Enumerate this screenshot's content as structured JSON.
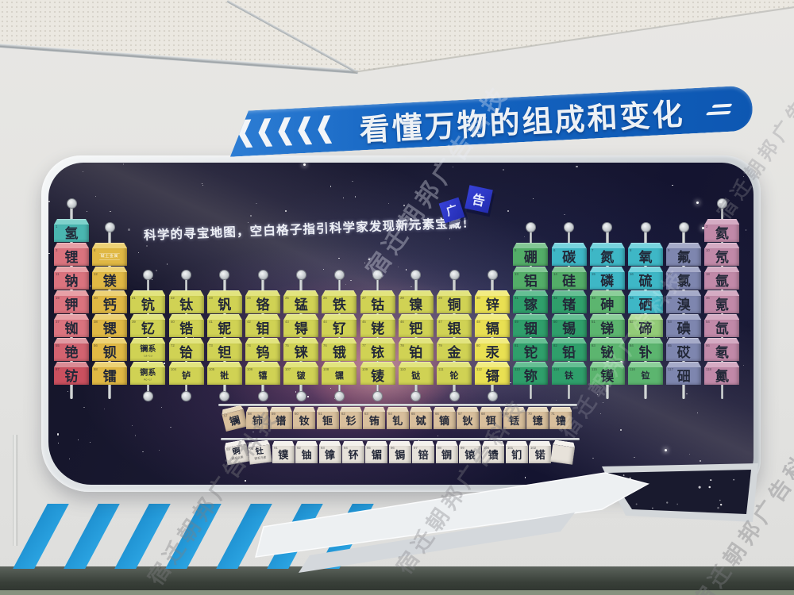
{
  "watermark": {
    "text": "宿迁朝邦广告科技"
  },
  "banner": {
    "title": "看懂万物的组成和变化",
    "chevron_count": 5,
    "color": "#1565c2"
  },
  "board": {
    "subtitle": "科学的寻宝地图，空白格子指引科学家发现新元素宝藏！"
  },
  "decor_cubes": [
    {
      "char": "广"
    },
    {
      "char": "告"
    }
  ],
  "palette": {
    "teal": {
      "f": "#4ab6b0",
      "t": "#7fd2cb"
    },
    "cyan": {
      "f": "#3eb7c6",
      "t": "#78d4de"
    },
    "rose": {
      "f": "#da737e",
      "t": "#e7a0a6"
    },
    "rose2": {
      "f": "#d26370",
      "t": "#e09aa2"
    },
    "rose3": {
      "f": "#ca505f",
      "t": "#d98b95"
    },
    "gold": {
      "f": "#e0b844",
      "t": "#edd276"
    },
    "olive": {
      "f": "#d0d254",
      "t": "#e2e47f"
    },
    "yellow": {
      "f": "#e9e052",
      "t": "#f2ec82"
    },
    "green": {
      "f": "#53ad68",
      "t": "#83c795"
    },
    "emerald": {
      "f": "#2f9f6b",
      "t": "#66bf94"
    },
    "mgreen": {
      "f": "#5cb56f",
      "t": "#8ccf9a"
    },
    "ltgreen": {
      "f": "#93cb78",
      "t": "#b8dfa0"
    },
    "slate": {
      "f": "#7e86af",
      "t": "#a6abc9"
    },
    "mauve": {
      "f": "#c189a8",
      "t": "#d5abc3"
    },
    "tan": {
      "f": "#d8bf9c",
      "t": "#e8d9bd"
    },
    "whitec": {
      "f": "#e7e2da",
      "t": "#f4f1ec"
    }
  },
  "periodic_table": {
    "columns": [
      {
        "group": 1,
        "start": 1,
        "cells": [
          {
            "t": "氢",
            "n": "1",
            "c": "teal"
          },
          {
            "t": "锂",
            "n": "3",
            "c": "rose"
          },
          {
            "t": "钠",
            "n": "11",
            "c": "rose"
          },
          {
            "t": "钾",
            "n": "19",
            "c": "rose"
          },
          {
            "t": "铷",
            "n": "37",
            "c": "rose"
          },
          {
            "t": "铯",
            "n": "55",
            "c": "rose2"
          },
          {
            "t": "钫",
            "n": "87",
            "c": "rose3"
          }
        ]
      },
      {
        "group": 2,
        "start": 2,
        "cells": [
          {
            "t": "碱土金属",
            "n": "4",
            "c": "gold",
            "info": true
          },
          {
            "t": "镁",
            "n": "12",
            "c": "gold"
          },
          {
            "t": "钙",
            "n": "20",
            "c": "gold"
          },
          {
            "t": "锶",
            "n": "38",
            "c": "gold"
          },
          {
            "t": "钡",
            "n": "56",
            "c": "gold"
          },
          {
            "t": "镭",
            "n": "88",
            "c": "gold"
          }
        ]
      },
      {
        "group": 3,
        "start": 4,
        "cells": [
          {
            "t": "钪",
            "n": "21",
            "c": "olive"
          },
          {
            "t": "钇",
            "n": "39",
            "c": "olive"
          },
          {
            "t": "镧系",
            "n": "",
            "c": "olive",
            "sub": "La~Lu"
          },
          {
            "t": "锕系",
            "n": "",
            "c": "olive",
            "sub": "Ac~Lr"
          }
        ]
      },
      {
        "group": 4,
        "start": 4,
        "cells": [
          {
            "t": "钛",
            "n": "22",
            "c": "olive"
          },
          {
            "t": "锆",
            "n": "40",
            "c": "olive"
          },
          {
            "t": "铪",
            "n": "72",
            "c": "olive"
          },
          {
            "t": "𬬻",
            "n": "104",
            "c": "olive"
          }
        ]
      },
      {
        "group": 5,
        "start": 4,
        "cells": [
          {
            "t": "钒",
            "n": "23",
            "c": "olive"
          },
          {
            "t": "铌",
            "n": "41",
            "c": "olive"
          },
          {
            "t": "钽",
            "n": "73",
            "c": "olive"
          },
          {
            "t": "𬭊",
            "n": "105",
            "c": "olive"
          }
        ]
      },
      {
        "group": 6,
        "start": 4,
        "cells": [
          {
            "t": "铬",
            "n": "24",
            "c": "olive"
          },
          {
            "t": "钼",
            "n": "42",
            "c": "olive"
          },
          {
            "t": "钨",
            "n": "74",
            "c": "olive"
          },
          {
            "t": "𬭳",
            "n": "106",
            "c": "olive"
          }
        ]
      },
      {
        "group": 7,
        "start": 4,
        "cells": [
          {
            "t": "锰",
            "n": "25",
            "c": "olive"
          },
          {
            "t": "锝",
            "n": "43",
            "c": "olive"
          },
          {
            "t": "铼",
            "n": "75",
            "c": "olive"
          },
          {
            "t": "𬭛",
            "n": "107",
            "c": "olive"
          }
        ]
      },
      {
        "group": 8,
        "start": 4,
        "cells": [
          {
            "t": "铁",
            "n": "26",
            "c": "olive"
          },
          {
            "t": "钌",
            "n": "44",
            "c": "olive"
          },
          {
            "t": "锇",
            "n": "76",
            "c": "olive"
          },
          {
            "t": "𬭶",
            "n": "108",
            "c": "olive"
          }
        ]
      },
      {
        "group": 9,
        "start": 4,
        "cells": [
          {
            "t": "钴",
            "n": "27",
            "c": "olive"
          },
          {
            "t": "铑",
            "n": "45",
            "c": "olive"
          },
          {
            "t": "铱",
            "n": "77",
            "c": "olive"
          },
          {
            "t": "鿏",
            "n": "109",
            "c": "olive"
          }
        ]
      },
      {
        "group": 10,
        "start": 4,
        "cells": [
          {
            "t": "镍",
            "n": "28",
            "c": "olive"
          },
          {
            "t": "钯",
            "n": "46",
            "c": "olive"
          },
          {
            "t": "铂",
            "n": "78",
            "c": "olive"
          },
          {
            "t": "𫟼",
            "n": "110",
            "c": "olive"
          }
        ]
      },
      {
        "group": 11,
        "start": 4,
        "cells": [
          {
            "t": "铜",
            "n": "29",
            "c": "olive"
          },
          {
            "t": "银",
            "n": "47",
            "c": "olive"
          },
          {
            "t": "金",
            "n": "79",
            "c": "olive"
          },
          {
            "t": "𬬭",
            "n": "111",
            "c": "olive"
          }
        ]
      },
      {
        "group": 12,
        "start": 4,
        "cells": [
          {
            "t": "锌",
            "n": "30",
            "c": "yellow"
          },
          {
            "t": "镉",
            "n": "48",
            "c": "yellow"
          },
          {
            "t": "汞",
            "n": "80",
            "c": "yellow"
          },
          {
            "t": "鿔",
            "n": "112",
            "c": "yellow"
          }
        ]
      },
      {
        "group": 13,
        "start": 2,
        "cells": [
          {
            "t": "硼",
            "n": "5",
            "c": "green"
          },
          {
            "t": "铝",
            "n": "13",
            "c": "green"
          },
          {
            "t": "镓",
            "n": "31",
            "c": "emerald"
          },
          {
            "t": "铟",
            "n": "49",
            "c": "emerald"
          },
          {
            "t": "铊",
            "n": "81",
            "c": "emerald"
          },
          {
            "t": "鿭",
            "n": "113",
            "c": "emerald"
          }
        ]
      },
      {
        "group": 14,
        "start": 2,
        "cells": [
          {
            "t": "碳",
            "n": "6",
            "c": "cyan"
          },
          {
            "t": "硅",
            "n": "14",
            "c": "green"
          },
          {
            "t": "锗",
            "n": "32",
            "c": "emerald"
          },
          {
            "t": "锡",
            "n": "50",
            "c": "emerald"
          },
          {
            "t": "铅",
            "n": "82",
            "c": "emerald"
          },
          {
            "t": "𫓧",
            "n": "114",
            "c": "emerald"
          }
        ]
      },
      {
        "group": 15,
        "start": 2,
        "cells": [
          {
            "t": "氮",
            "n": "7",
            "c": "cyan"
          },
          {
            "t": "磷",
            "n": "15",
            "c": "cyan"
          },
          {
            "t": "砷",
            "n": "33",
            "c": "mgreen"
          },
          {
            "t": "锑",
            "n": "51",
            "c": "mgreen"
          },
          {
            "t": "铋",
            "n": "83",
            "c": "mgreen"
          },
          {
            "t": "镆",
            "n": "115",
            "c": "mgreen"
          }
        ]
      },
      {
        "group": 16,
        "start": 2,
        "cells": [
          {
            "t": "氧",
            "n": "8",
            "c": "cyan"
          },
          {
            "t": "硫",
            "n": "16",
            "c": "cyan"
          },
          {
            "t": "硒",
            "n": "34",
            "c": "cyan"
          },
          {
            "t": "碲",
            "n": "52",
            "c": "ltgreen"
          },
          {
            "t": "钋",
            "n": "84",
            "c": "mgreen"
          },
          {
            "t": "𫟷",
            "n": "116",
            "c": "mgreen"
          }
        ]
      },
      {
        "group": 17,
        "start": 2,
        "cells": [
          {
            "t": "氟",
            "n": "9",
            "c": "slate"
          },
          {
            "t": "氯",
            "n": "17",
            "c": "slate"
          },
          {
            "t": "溴",
            "n": "35",
            "c": "slate"
          },
          {
            "t": "碘",
            "n": "53",
            "c": "slate"
          },
          {
            "t": "砹",
            "n": "85",
            "c": "slate"
          },
          {
            "t": "鿬",
            "n": "117",
            "c": "slate"
          }
        ]
      },
      {
        "group": 18,
        "start": 1,
        "cells": [
          {
            "t": "氦",
            "n": "2",
            "c": "mauve"
          },
          {
            "t": "氖",
            "n": "10",
            "c": "mauve"
          },
          {
            "t": "氩",
            "n": "18",
            "c": "mauve"
          },
          {
            "t": "氪",
            "n": "36",
            "c": "mauve"
          },
          {
            "t": "氙",
            "n": "54",
            "c": "mauve"
          },
          {
            "t": "氡",
            "n": "86",
            "c": "mauve"
          },
          {
            "t": "鿫",
            "n": "118",
            "c": "mauve"
          }
        ]
      }
    ],
    "lanthanides": [
      {
        "t": "镧",
        "n": "57",
        "c": "tan",
        "tilt": -14
      },
      {
        "t": "铈",
        "n": "58",
        "c": "tan"
      },
      {
        "t": "镨",
        "n": "59",
        "c": "tan"
      },
      {
        "t": "钕",
        "n": "60",
        "c": "tan"
      },
      {
        "t": "钷",
        "n": "61",
        "c": "tan"
      },
      {
        "t": "钐",
        "n": "62",
        "c": "tan"
      },
      {
        "t": "铕",
        "n": "63",
        "c": "tan"
      },
      {
        "t": "钆",
        "n": "64",
        "c": "tan"
      },
      {
        "t": "铽",
        "n": "65",
        "c": "tan"
      },
      {
        "t": "镝",
        "n": "66",
        "c": "tan"
      },
      {
        "t": "钬",
        "n": "67",
        "c": "tan"
      },
      {
        "t": "铒",
        "n": "68",
        "c": "tan"
      },
      {
        "t": "铥",
        "n": "69",
        "c": "tan"
      },
      {
        "t": "镱",
        "n": "70",
        "c": "tan"
      },
      {
        "t": "镥",
        "n": "71",
        "c": "tan"
      }
    ],
    "actinides": [
      {
        "t": "锕",
        "n": "89",
        "c": "whitec",
        "tilt": -10,
        "sub": "锕系元素"
      },
      {
        "t": "钍",
        "n": "90",
        "c": "whitec",
        "tilt": -7,
        "sub": "锕系元素"
      },
      {
        "t": "镤",
        "n": "91",
        "c": "whitec"
      },
      {
        "t": "铀",
        "n": "92",
        "c": "whitec"
      },
      {
        "t": "镎",
        "n": "93",
        "c": "whitec"
      },
      {
        "t": "钚",
        "n": "94",
        "c": "whitec"
      },
      {
        "t": "镅",
        "n": "95",
        "c": "whitec"
      },
      {
        "t": "锔",
        "n": "96",
        "c": "whitec"
      },
      {
        "t": "锫",
        "n": "97",
        "c": "whitec"
      },
      {
        "t": "锎",
        "n": "98",
        "c": "whitec"
      },
      {
        "t": "锿",
        "n": "99",
        "c": "whitec"
      },
      {
        "t": "镄",
        "n": "100",
        "c": "whitec"
      },
      {
        "t": "钔",
        "n": "101",
        "c": "whitec"
      },
      {
        "t": "锘",
        "n": "102",
        "c": "whitec"
      },
      {
        "t": "",
        "n": "",
        "c": "whitec",
        "pattern": true,
        "tilt": 8
      }
    ]
  }
}
